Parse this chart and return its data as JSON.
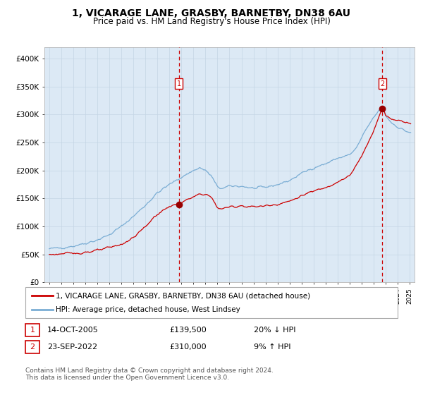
{
  "title": "1, VICARAGE LANE, GRASBY, BARNETBY, DN38 6AU",
  "subtitle": "Price paid vs. HM Land Registry's House Price Index (HPI)",
  "legend_line1": "1, VICARAGE LANE, GRASBY, BARNETBY, DN38 6AU (detached house)",
  "legend_line2": "HPI: Average price, detached house, West Lindsey",
  "sale1_date": "14-OCT-2005",
  "sale1_price": 139500,
  "sale1_label": "1",
  "sale1_pct": "20% ↓ HPI",
  "sale2_date": "23-SEP-2022",
  "sale2_price": 310000,
  "sale2_label": "2",
  "sale2_pct": "9% ↑ HPI",
  "footer1": "Contains HM Land Registry data © Crown copyright and database right 2024.",
  "footer2": "This data is licensed under the Open Government Licence v3.0.",
  "bg_color": "#dce9f5",
  "line_color_red": "#cc0000",
  "line_color_blue": "#7aadd4",
  "dashed_line_color": "#cc0000",
  "marker_color": "#990000",
  "grid_color": "#c5d5e5",
  "ylim": [
    0,
    420000
  ],
  "yticks": [
    0,
    50000,
    100000,
    150000,
    200000,
    250000,
    300000,
    350000,
    400000
  ],
  "ytick_labels": [
    "£0",
    "£50K",
    "£100K",
    "£150K",
    "£200K",
    "£250K",
    "£300K",
    "£350K",
    "£400K"
  ],
  "sale1_x": 2005.79,
  "sale2_x": 2022.73,
  "xlim_left": 1994.6,
  "xlim_right": 2025.4
}
